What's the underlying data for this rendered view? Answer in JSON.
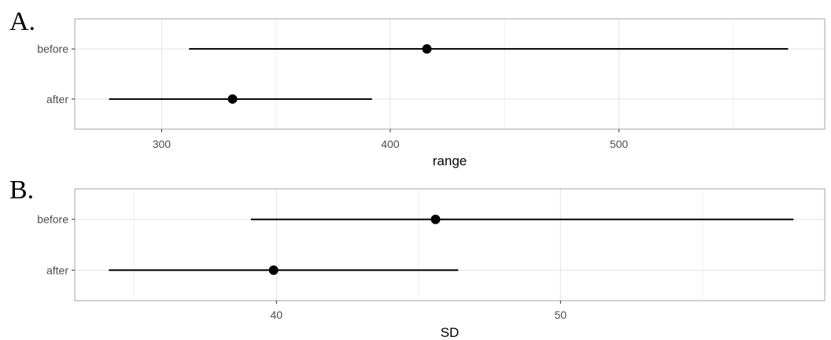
{
  "chart_data": [
    {
      "type": "pointrange",
      "panel_label": "A.",
      "xlabel": "range",
      "ylabel": "",
      "categories": [
        "before",
        "after"
      ],
      "xlim": [
        262,
        590
      ],
      "xticks": [
        300,
        400,
        500
      ],
      "grid": true,
      "points": [
        {
          "category": "before",
          "estimate": 416,
          "low": 312,
          "high": 574
        },
        {
          "category": "after",
          "estimate": 331,
          "low": 277,
          "high": 392
        }
      ]
    },
    {
      "type": "pointrange",
      "panel_label": "B.",
      "xlabel": "SD",
      "ylabel": "",
      "categories": [
        "before",
        "after"
      ],
      "xlim": [
        32.9,
        59.3
      ],
      "xticks": [
        40,
        50
      ],
      "grid": true,
      "points": [
        {
          "category": "before",
          "estimate": 45.6,
          "low": 39.1,
          "high": 58.2
        },
        {
          "category": "after",
          "estimate": 39.9,
          "low": 34.1,
          "high": 46.4
        }
      ]
    }
  ]
}
